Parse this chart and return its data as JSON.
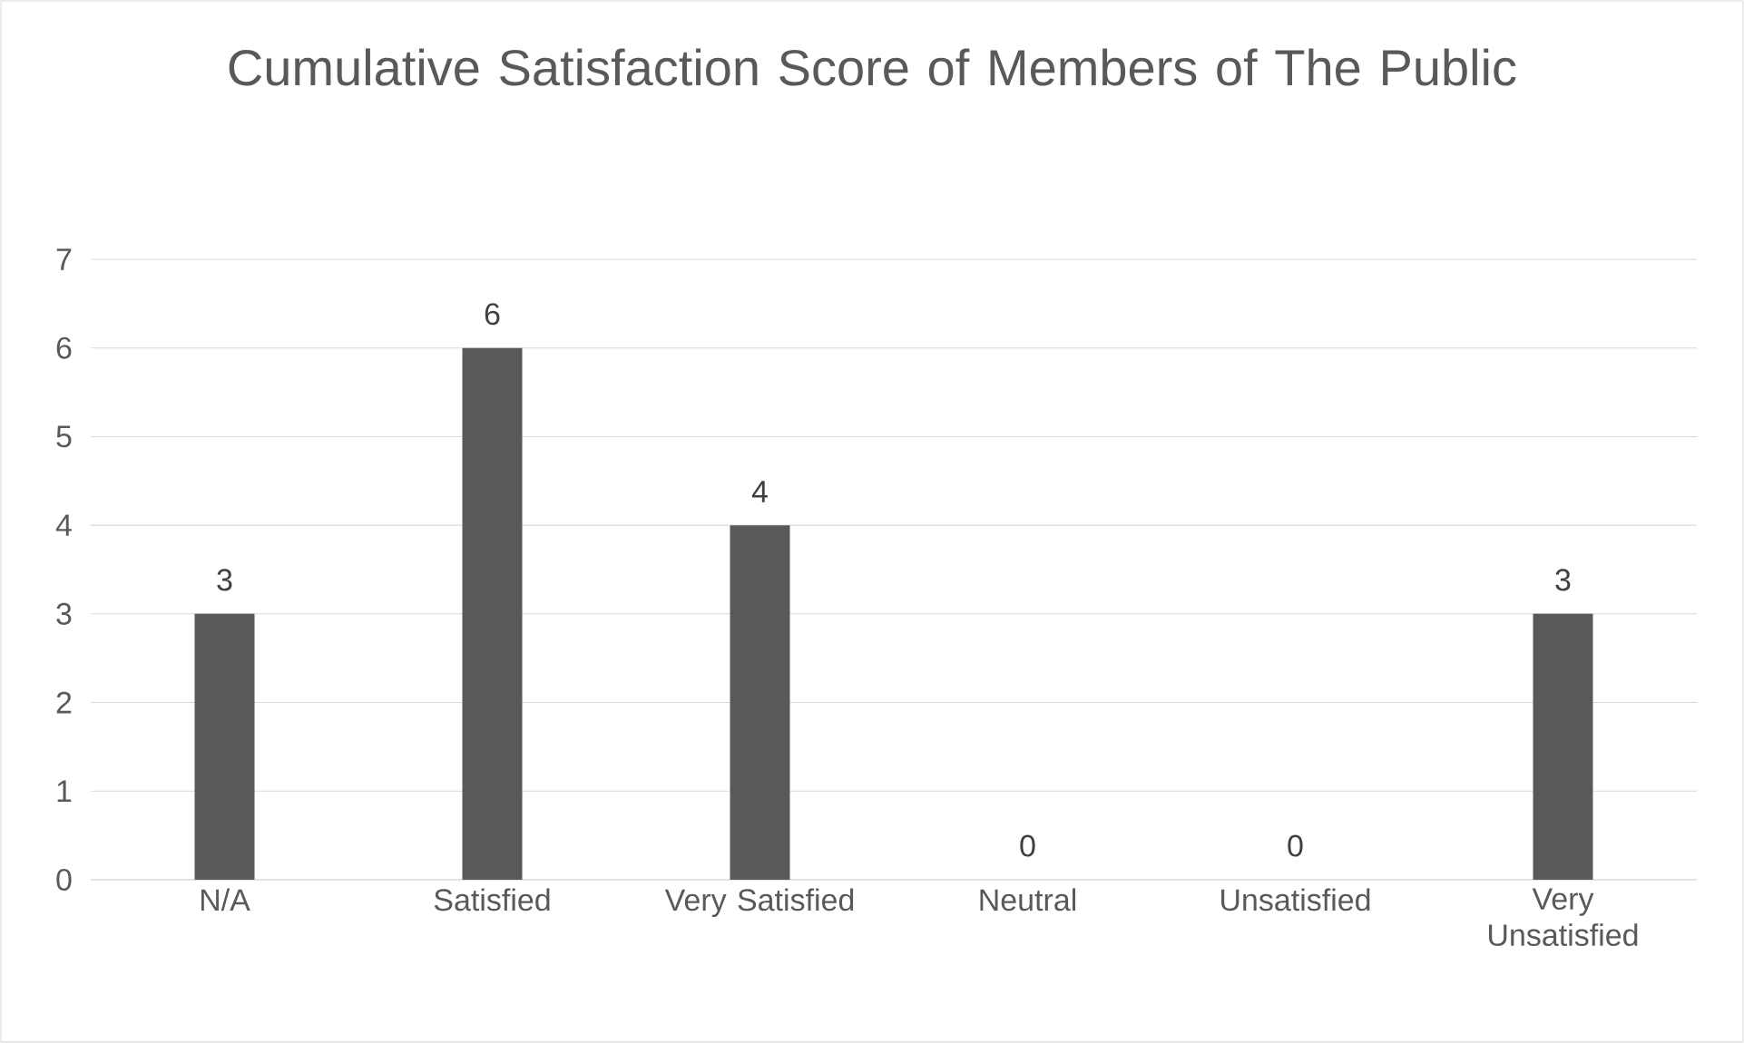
{
  "chart_data": {
    "type": "bar",
    "title": "Cumulative Satisfaction Score of Members of The Public",
    "categories": [
      "N/A",
      "Satisfied",
      "Very Satisfied",
      "Neutral",
      "Unsatisfied",
      "Very Unsatisfied"
    ],
    "values": [
      3,
      6,
      4,
      0,
      0,
      3
    ],
    "color": "#595959",
    "ylim": [
      0,
      7
    ],
    "yticks": [
      0,
      1,
      2,
      3,
      4,
      5,
      6,
      7
    ],
    "grid": "y",
    "data_labels": true
  }
}
